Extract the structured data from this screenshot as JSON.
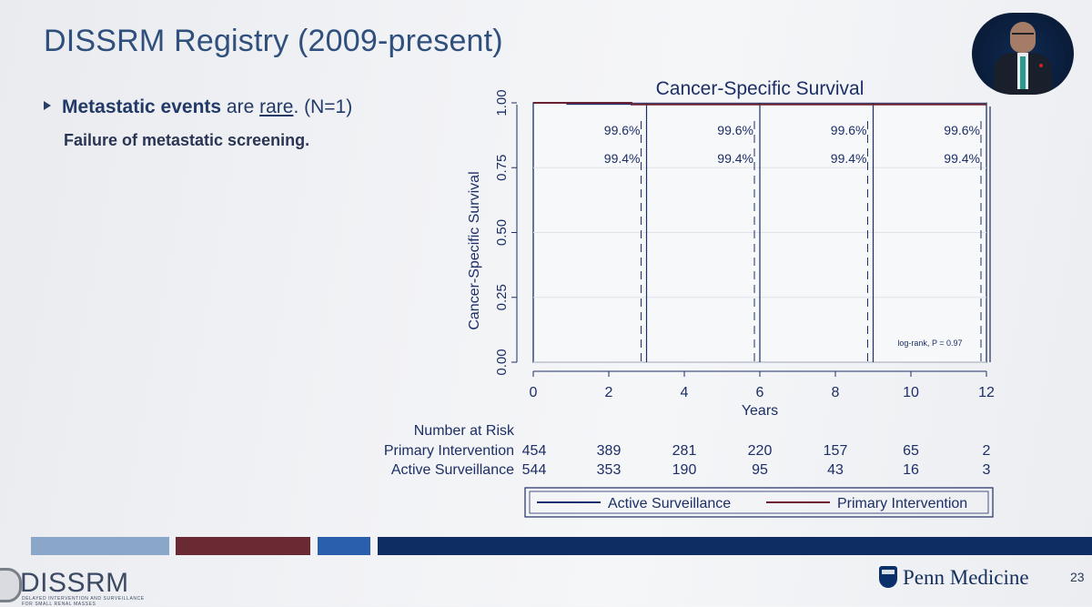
{
  "slide": {
    "title": "DISSRM Registry (2009-present)",
    "bullet": {
      "bold": "Metastatic events",
      "mid": " are ",
      "underlined": "rare",
      "end": ". (N=1)"
    },
    "subtext": "Failure of metastatic screening.",
    "page_number": "23",
    "footer_left": {
      "brand": "DISSRM",
      "tagline_line1": "DELAYED INTERVENTION AND SURVEILLANCE",
      "tagline_line2": "FOR SMALL RENAL MASSES"
    },
    "footer_right": "Penn Medicine",
    "colors": {
      "bar1": "#8aa6c9",
      "bar2": "#6a2a34",
      "bar3": "#2a5fae",
      "bar4": "#0e2e63"
    }
  },
  "chart_data": {
    "type": "line",
    "title": "Cancer-Specific Survival",
    "xlabel": "Years",
    "ylabel": "Cancer-Specific Survival",
    "xlim": [
      0,
      12
    ],
    "ylim": [
      0,
      1
    ],
    "xticks": [
      0,
      2,
      4,
      6,
      8,
      10,
      12
    ],
    "yticks": [
      0.0,
      0.25,
      0.5,
      0.75,
      1.0
    ],
    "ytick_labels": [
      "0.00",
      "0.25",
      "0.50",
      "0.75",
      "1.00"
    ],
    "grid": "horizontal",
    "series": [
      {
        "name": "Active Surveillance",
        "x": [
          0,
          0.9,
          0.9,
          12
        ],
        "y": [
          1.0,
          1.0,
          0.996,
          0.996
        ],
        "color": "#1a2f6b"
      },
      {
        "name": "Primary Intervention",
        "x": [
          0,
          2.6,
          2.6,
          12
        ],
        "y": [
          1.0,
          1.0,
          0.994,
          0.994
        ],
        "color": "#6a2233"
      }
    ],
    "reference_lines": [
      {
        "x": 3,
        "labels": [
          "99.6%",
          "99.4%"
        ]
      },
      {
        "x": 6,
        "labels": [
          "99.6%",
          "99.4%"
        ]
      },
      {
        "x": 9,
        "labels": [
          "99.6%",
          "99.4%"
        ]
      },
      {
        "x": 12,
        "labels": [
          "99.6%",
          "99.4%"
        ]
      }
    ],
    "annotation": "log-rank, P = 0.97",
    "risk_table": {
      "title": "Number at Risk",
      "times": [
        0,
        2,
        4,
        6,
        8,
        10,
        12
      ],
      "rows": [
        {
          "label": "Primary Intervention",
          "values": [
            454,
            389,
            281,
            220,
            157,
            65,
            2
          ]
        },
        {
          "label": "Active Surveillance",
          "values": [
            544,
            353,
            190,
            95,
            43,
            16,
            3
          ]
        }
      ]
    },
    "legend": {
      "placement": "bottom",
      "items": [
        "Active Surveillance",
        "Primary Intervention"
      ]
    }
  }
}
